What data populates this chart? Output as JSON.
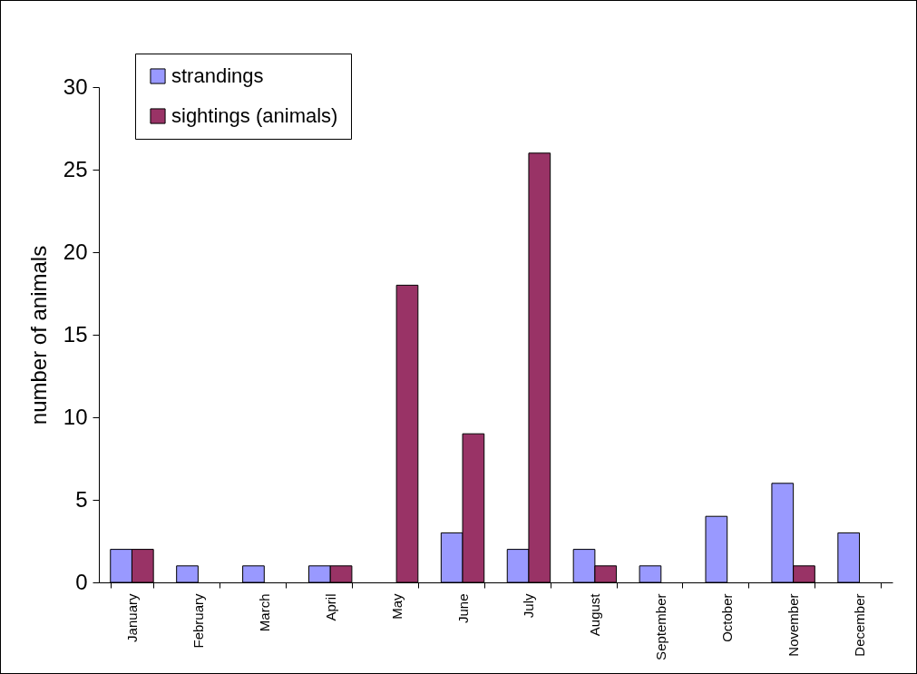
{
  "chart_data": {
    "type": "bar",
    "ylabel": "number of animals",
    "categories": [
      "January",
      "February",
      "March",
      "April",
      "May",
      "June",
      "July",
      "August",
      "September",
      "October",
      "November",
      "December"
    ],
    "series": [
      {
        "name": "strandings",
        "color": "#9999ff",
        "values": [
          2,
          1,
          1,
          1,
          null,
          3,
          2,
          2,
          1,
          4,
          6,
          3
        ]
      },
      {
        "name": "sightings (animals)",
        "color": "#993366",
        "values": [
          2,
          null,
          null,
          1,
          18,
          9,
          26,
          1,
          null,
          null,
          1,
          null
        ]
      }
    ],
    "ylim": [
      0,
      30
    ],
    "yticks": [
      0,
      5,
      10,
      15,
      20,
      25,
      30
    ],
    "grid": false,
    "legend": "top left"
  }
}
